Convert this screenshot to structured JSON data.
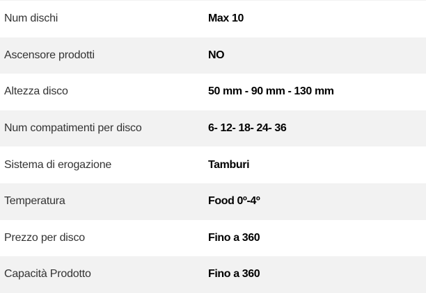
{
  "rows": [
    {
      "label": "Num dischi",
      "value": "Max 10"
    },
    {
      "label": "Ascensore prodotti",
      "value": "NO"
    },
    {
      "label": "Altezza disco",
      "value": "50 mm - 90 mm - 130 mm"
    },
    {
      "label": "Num compatimenti per disco",
      "value": "6- 12- 18- 24- 36"
    },
    {
      "label": "Sistema di erogazione",
      "value": "Tamburi"
    },
    {
      "label": "Temperatura",
      "value": "Food 0º-4º"
    },
    {
      "label": "Prezzo per disco",
      "value": "Fino a 360"
    },
    {
      "label": "Capacità Prodotto",
      "value": "Fino a 360"
    }
  ]
}
